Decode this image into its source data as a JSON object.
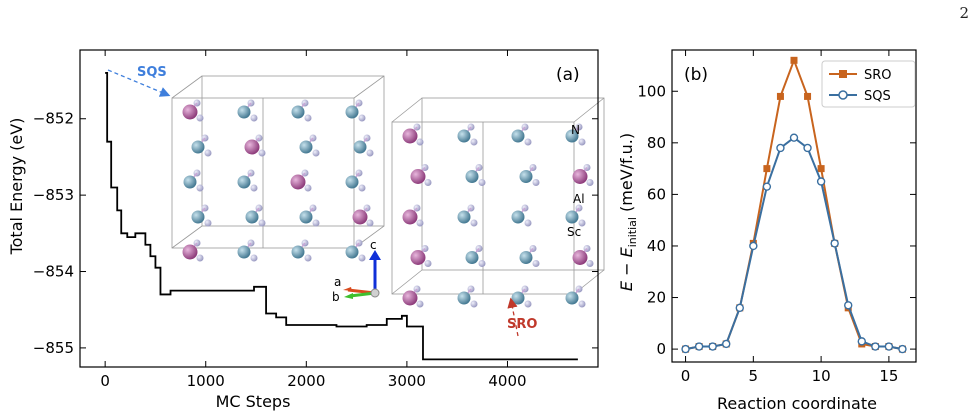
{
  "page_number": "2",
  "chart_data": [
    {
      "type": "line",
      "panel_label": "(a)",
      "xlabel": "MC Steps",
      "ylabel": "Total Energy (eV)",
      "xlim": [
        -250,
        4900
      ],
      "ylim": [
        -855.25,
        -851.1
      ],
      "xticks": [
        0,
        1000,
        2000,
        3000,
        4000
      ],
      "yticks": [
        -852,
        -853,
        -854,
        -855
      ],
      "ytick_labels": [
        "−852",
        "−853",
        "−854",
        "−855"
      ],
      "series": [
        {
          "color": "#000000",
          "step_x": [
            0,
            20,
            60,
            120,
            160,
            220,
            300,
            400,
            450,
            500,
            550,
            650,
            1480,
            1600,
            1700,
            1800,
            2300,
            2600,
            2800,
            2950,
            3000,
            3160,
            4700
          ],
          "step_y": [
            -851.4,
            -852.3,
            -852.9,
            -853.2,
            -853.5,
            -853.55,
            -853.5,
            -853.65,
            -853.8,
            -853.95,
            -854.3,
            -854.25,
            -854.2,
            -854.55,
            -854.6,
            -854.7,
            -854.72,
            -854.7,
            -854.62,
            -854.58,
            -854.72,
            -855.15,
            -855.15
          ]
        }
      ],
      "annotations": {
        "sqs_label": "SQS",
        "sro_label": "SRO",
        "atom_labels": [
          "N",
          "Al",
          "Sc"
        ],
        "axis_labels": [
          "a",
          "b",
          "c"
        ]
      },
      "colors": {
        "Sc": "#b0569a",
        "Al": "#5b8fa6",
        "N": "#b8b8d8",
        "sqs_arrow": "#3f7fdc",
        "sro_arrow": "#c0392b",
        "a_axis": "#d94b1e",
        "b_axis": "#3fbf2e",
        "c_axis": "#1030d8"
      }
    },
    {
      "type": "line",
      "panel_label": "(b)",
      "xlabel": "Reaction coordinate",
      "ylabel": "E − E_initial (meV/f.u.)",
      "ylabel_main": "E − E",
      "ylabel_sub": "initial",
      "ylabel_unit": " (meV/f.u.)",
      "xlim": [
        -1,
        17
      ],
      "ylim": [
        -5,
        116
      ],
      "xticks": [
        0,
        5,
        10,
        15
      ],
      "yticks": [
        0,
        20,
        40,
        60,
        80,
        100
      ],
      "legend_position": "top-right",
      "x": [
        0,
        1,
        2,
        3,
        4,
        5,
        6,
        7,
        8,
        9,
        10,
        11,
        12,
        13,
        14,
        15,
        16
      ],
      "series": [
        {
          "name": "SRO",
          "color": "#c8641e",
          "marker": "square",
          "values": [
            0,
            1,
            1,
            2,
            16,
            41,
            70,
            98,
            112,
            98,
            70,
            41,
            16,
            2,
            1,
            1,
            0
          ]
        },
        {
          "name": "SQS",
          "color": "#3a6fa0",
          "marker": "circle",
          "values": [
            0,
            1,
            1,
            2,
            16,
            40,
            63,
            78,
            82,
            78,
            65,
            41,
            17,
            3,
            1,
            1,
            0
          ]
        }
      ]
    }
  ]
}
